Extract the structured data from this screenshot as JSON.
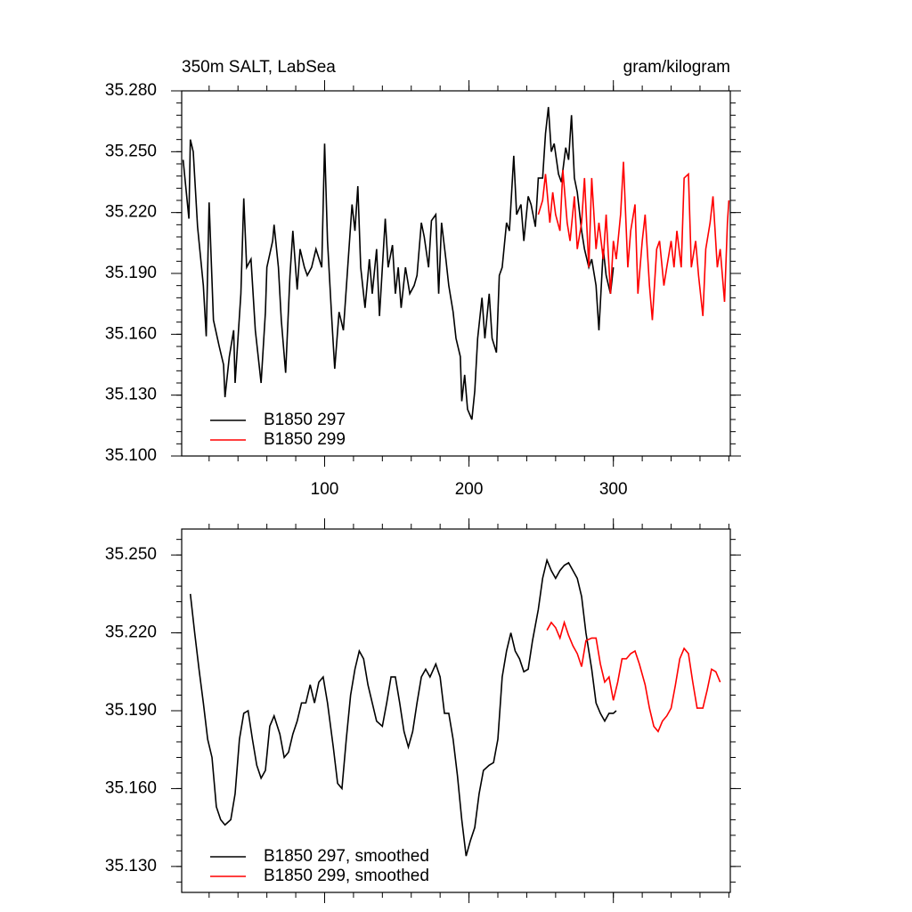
{
  "chart_data": [
    {
      "type": "line",
      "title": "350m SALT, LabSea",
      "units": "gram/kilogram",
      "xlim": [
        1,
        381
      ],
      "xticks": [
        100,
        200,
        300
      ],
      "ylim": [
        35.1,
        35.28
      ],
      "yticks": [
        {
          "value": 35.1,
          "label": "35.100"
        },
        {
          "value": 35.13,
          "label": "35.130"
        },
        {
          "value": 35.16,
          "label": "35.160"
        },
        {
          "value": 35.19,
          "label": "35.190"
        },
        {
          "value": 35.22,
          "label": "35.220"
        },
        {
          "value": 35.25,
          "label": "35.250"
        },
        {
          "value": 35.28,
          "label": "35.280"
        }
      ],
      "legend": "lower left",
      "series": [
        {
          "name": "B1850 297",
          "color": "#000000",
          "x": [
            2,
            6,
            7,
            9,
            12,
            16,
            18,
            20,
            23,
            27,
            30,
            31,
            34,
            37,
            38,
            42,
            44,
            46,
            49,
            52,
            56,
            59,
            60,
            64,
            65,
            68,
            70,
            73,
            76,
            78,
            81,
            83,
            86,
            88,
            91,
            94,
            98,
            100,
            102,
            105,
            107,
            110,
            113,
            116,
            119,
            121,
            123,
            125,
            128,
            131,
            133,
            136,
            138,
            140,
            142,
            144,
            147,
            149,
            151,
            153,
            156,
            159,
            162,
            164,
            167,
            169,
            172,
            174,
            177,
            179,
            181,
            184,
            186,
            189,
            191,
            194,
            195,
            197,
            199,
            202,
            204,
            206,
            209,
            211,
            214,
            216,
            219,
            221,
            223,
            226,
            228,
            231,
            233,
            236,
            238,
            241,
            243,
            246,
            248,
            251,
            253,
            255,
            257,
            259,
            262,
            264,
            267,
            269,
            271,
            273,
            275,
            278,
            280,
            283,
            285,
            288,
            290,
            293,
            295,
            298,
            300
          ],
          "values": [
            35.246,
            35.217,
            35.256,
            35.25,
            35.213,
            35.184,
            35.159,
            35.225,
            35.167,
            35.154,
            35.145,
            35.129,
            35.149,
            35.162,
            35.136,
            35.18,
            35.227,
            35.193,
            35.197,
            35.162,
            35.136,
            35.171,
            35.193,
            35.206,
            35.214,
            35.193,
            35.167,
            35.141,
            35.189,
            35.211,
            35.182,
            35.202,
            35.193,
            35.189,
            35.193,
            35.202,
            35.193,
            35.254,
            35.206,
            35.167,
            35.143,
            35.171,
            35.162,
            35.193,
            35.224,
            35.211,
            35.233,
            35.193,
            35.173,
            35.197,
            35.18,
            35.202,
            35.169,
            35.193,
            35.217,
            35.193,
            35.204,
            35.18,
            35.193,
            35.173,
            35.193,
            35.18,
            35.184,
            35.189,
            35.215,
            35.208,
            35.193,
            35.216,
            35.219,
            35.18,
            35.215,
            35.197,
            35.184,
            35.171,
            35.158,
            35.149,
            35.127,
            35.14,
            35.123,
            35.118,
            35.132,
            35.158,
            35.178,
            35.158,
            35.18,
            35.158,
            35.151,
            35.189,
            35.193,
            35.215,
            35.211,
            35.248,
            35.219,
            35.224,
            35.206,
            35.228,
            35.224,
            35.213,
            35.237,
            35.237,
            35.259,
            35.272,
            35.25,
            35.254,
            35.239,
            35.235,
            35.252,
            35.246,
            35.268,
            35.237,
            35.23,
            35.211,
            35.202,
            35.193,
            35.197,
            35.184,
            35.162,
            35.202,
            35.189,
            35.18,
            35.193
          ]
        },
        {
          "name": "B1850 299",
          "color": "#ff0000",
          "x": [
            248,
            251,
            253,
            256,
            258,
            260,
            263,
            265,
            268,
            270,
            273,
            275,
            278,
            280,
            283,
            285,
            288,
            290,
            293,
            295,
            298,
            300,
            302,
            305,
            307,
            310,
            312,
            315,
            317,
            320,
            322,
            325,
            327,
            330,
            332,
            335,
            337,
            340,
            342,
            344,
            347,
            349,
            352,
            354,
            357,
            359,
            362,
            364,
            367,
            369,
            372,
            374,
            377,
            379,
            380
          ],
          "values": [
            35.219,
            35.226,
            35.239,
            35.215,
            35.23,
            35.219,
            35.211,
            35.241,
            35.215,
            35.206,
            35.228,
            35.202,
            35.215,
            35.237,
            35.193,
            35.237,
            35.202,
            35.215,
            35.197,
            35.219,
            35.18,
            35.206,
            35.197,
            35.219,
            35.245,
            35.193,
            35.211,
            35.224,
            35.18,
            35.206,
            35.219,
            35.184,
            35.167,
            35.202,
            35.206,
            35.184,
            35.193,
            35.206,
            35.193,
            35.211,
            35.193,
            35.237,
            35.239,
            35.193,
            35.206,
            35.189,
            35.169,
            35.202,
            35.215,
            35.228,
            35.193,
            35.202,
            35.176,
            35.215,
            35.226
          ]
        }
      ]
    },
    {
      "type": "line",
      "xlim": [
        1,
        381
      ],
      "xticks": [
        100,
        200,
        300
      ],
      "ylim": [
        35.12,
        35.26
      ],
      "yticks": [
        {
          "value": 35.13,
          "label": "35.130"
        },
        {
          "value": 35.16,
          "label": "35.160"
        },
        {
          "value": 35.19,
          "label": "35.190"
        },
        {
          "value": 35.22,
          "label": "35.220"
        },
        {
          "value": 35.25,
          "label": "35.250"
        }
      ],
      "legend": "lower left",
      "series": [
        {
          "name": "B1850 297, smoothed",
          "color": "#000000",
          "x": [
            7,
            10,
            13,
            16,
            19,
            22,
            25,
            28,
            31,
            35,
            38,
            41,
            44,
            47,
            50,
            53,
            56,
            59,
            62,
            65,
            69,
            72,
            75,
            78,
            81,
            84,
            87,
            90,
            93,
            96,
            99,
            102,
            106,
            109,
            112,
            115,
            118,
            121,
            124,
            127,
            130,
            133,
            136,
            140,
            143,
            146,
            149,
            152,
            155,
            158,
            161,
            164,
            167,
            170,
            173,
            177,
            180,
            183,
            186,
            189,
            192,
            195,
            198,
            201,
            204,
            207,
            210,
            214,
            217,
            220,
            223,
            226,
            229,
            232,
            235,
            238,
            241,
            244,
            248,
            251,
            254,
            257,
            260,
            263,
            266,
            269,
            272,
            275,
            278,
            281,
            285,
            288,
            291,
            294,
            297,
            300,
            302
          ],
          "values": [
            35.235,
            35.22,
            35.206,
            35.193,
            35.179,
            35.172,
            35.153,
            35.148,
            35.146,
            35.148,
            35.158,
            35.179,
            35.189,
            35.19,
            35.179,
            35.169,
            35.164,
            35.167,
            35.184,
            35.188,
            35.181,
            35.172,
            35.174,
            35.181,
            35.186,
            35.193,
            35.193,
            35.2,
            35.193,
            35.201,
            35.203,
            35.193,
            35.176,
            35.162,
            35.16,
            35.179,
            35.196,
            35.206,
            35.213,
            35.21,
            35.2,
            35.193,
            35.186,
            35.184,
            35.193,
            35.203,
            35.203,
            35.193,
            35.182,
            35.176,
            35.182,
            35.193,
            35.203,
            35.206,
            35.203,
            35.208,
            35.203,
            35.189,
            35.189,
            35.179,
            35.165,
            35.148,
            35.134,
            35.14,
            35.145,
            35.158,
            35.167,
            35.169,
            35.17,
            35.179,
            35.203,
            35.213,
            35.22,
            35.213,
            35.21,
            35.205,
            35.206,
            35.217,
            35.229,
            35.241,
            35.248,
            35.244,
            35.241,
            35.244,
            35.246,
            35.247,
            35.244,
            35.241,
            35.234,
            35.22,
            35.206,
            35.193,
            35.189,
            35.186,
            35.189,
            35.189,
            35.19
          ]
        },
        {
          "name": "B1850 299, smoothed",
          "color": "#ff0000",
          "x": [
            254,
            257,
            260,
            263,
            266,
            269,
            272,
            275,
            278,
            281,
            285,
            288,
            291,
            294,
            297,
            300,
            303,
            306,
            309,
            312,
            315,
            318,
            322,
            325,
            328,
            331,
            334,
            337,
            340,
            343,
            346,
            349,
            352,
            355,
            358,
            362,
            365,
            368,
            371,
            374
          ],
          "values": [
            35.221,
            35.224,
            35.222,
            35.218,
            35.224,
            35.219,
            35.215,
            35.212,
            35.207,
            35.217,
            35.218,
            35.218,
            35.208,
            35.201,
            35.203,
            35.194,
            35.201,
            35.21,
            35.21,
            35.212,
            35.213,
            35.208,
            35.2,
            35.191,
            35.184,
            35.182,
            35.186,
            35.188,
            35.191,
            35.2,
            35.21,
            35.214,
            35.212,
            35.201,
            35.191,
            35.191,
            35.198,
            35.206,
            35.205,
            35.201
          ]
        }
      ]
    }
  ]
}
